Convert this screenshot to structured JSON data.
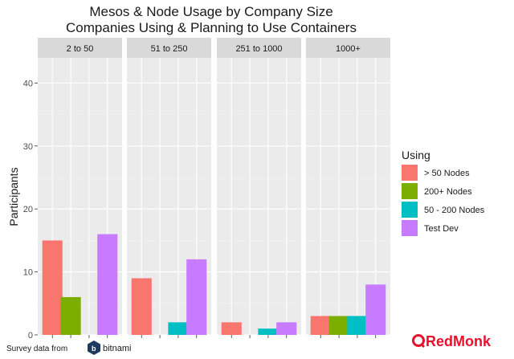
{
  "chart_data": {
    "type": "bar",
    "title": "Mesos & Node Usage by Company Size",
    "subtitle": "Companies Using & Planning to Use Containers",
    "ylabel": "Participants",
    "xlabel": "",
    "ylim": [
      0,
      44
    ],
    "yticks": [
      "0",
      "10",
      "20",
      "30",
      "40"
    ],
    "legend_title": "Using",
    "legend_position": "right",
    "grid": true,
    "categories": [
      "> 50 Nodes",
      "200+ Nodes",
      "50 - 200 Nodes",
      "Test Dev"
    ],
    "colors": [
      "#F8766D",
      "#7CAE00",
      "#00BFC4",
      "#C77CFF"
    ],
    "facets": [
      {
        "label": "2 to 50",
        "values": [
          15,
          6,
          0,
          16
        ]
      },
      {
        "label": "51 to 250",
        "values": [
          9,
          0,
          2,
          12
        ]
      },
      {
        "label": "251 to 1000",
        "values": [
          2,
          0,
          1,
          2
        ]
      },
      {
        "label": "1000+",
        "values": [
          3,
          3,
          3,
          8
        ]
      }
    ]
  },
  "footer": {
    "survey_text": "Survey data from",
    "bitnami": "bitnami",
    "redmonk": "RedMonk"
  }
}
